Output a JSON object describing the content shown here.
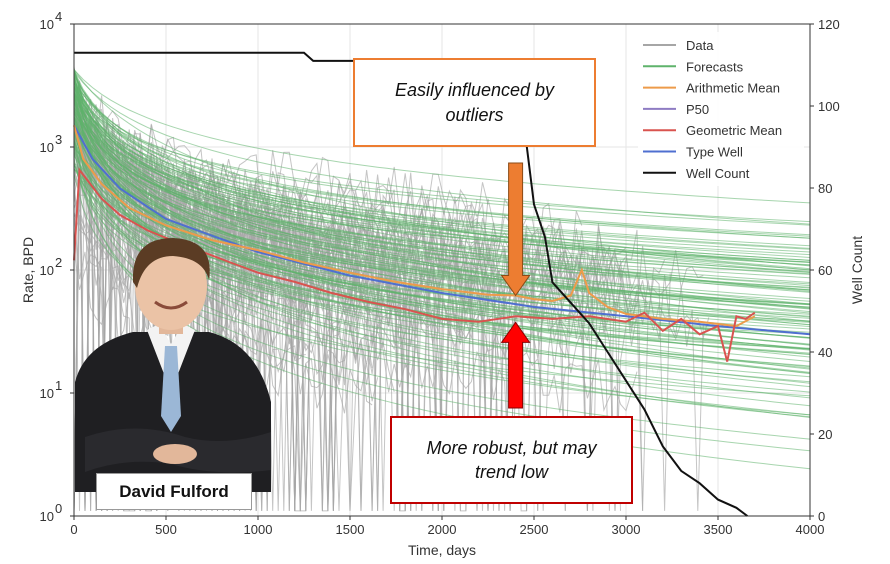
{
  "chart_data": {
    "type": "line",
    "xlabel": "Time, days",
    "ylabel": "Rate, BPD",
    "y2label": "Well Count",
    "xlim": [
      0,
      4000
    ],
    "ylim": [
      1,
      10000
    ],
    "yscale": "log",
    "y2lim": [
      0,
      120
    ],
    "x_ticks": [
      "0",
      "500",
      "1000",
      "1500",
      "2000",
      "2500",
      "3000",
      "3500",
      "4000"
    ],
    "y_ticks_left": [
      {
        "base": "10",
        "exp": "0"
      },
      {
        "base": "10",
        "exp": "1"
      },
      {
        "base": "10",
        "exp": "2"
      },
      {
        "base": "10",
        "exp": "3"
      },
      {
        "base": "10",
        "exp": "4"
      }
    ],
    "y_ticks_right": [
      "0",
      "20",
      "40",
      "60",
      "80",
      "100",
      "120"
    ],
    "legend_position": "top-right",
    "grid": true,
    "legend": [
      {
        "name": "Data",
        "color": "#A6A6A6"
      },
      {
        "name": "Forecasts",
        "color": "#5FB36B"
      },
      {
        "name": "Arithmetic Mean",
        "color": "#ED9B4A"
      },
      {
        "name": "P50",
        "color": "#8E7CC3"
      },
      {
        "name": "Geometric Mean",
        "color": "#D9534F"
      },
      {
        "name": "Type Well",
        "color": "#4F6FD0"
      },
      {
        "name": "Well Count",
        "color": "#111111"
      }
    ],
    "series": [
      {
        "name": "Type Well",
        "axis": "left",
        "x": [
          0,
          100,
          250,
          500,
          750,
          1000,
          1500,
          2000,
          2500,
          3000,
          3500,
          4000
        ],
        "y": [
          1500,
          800,
          460,
          260,
          190,
          140,
          90,
          65,
          50,
          42,
          35,
          30
        ]
      },
      {
        "name": "Arithmetic Mean",
        "axis": "left",
        "x": [
          0,
          50,
          150,
          300,
          500,
          750,
          1000,
          1250,
          1500,
          1750,
          2000,
          2250,
          2400,
          2500,
          2600,
          2700,
          2760,
          2800,
          2900,
          3000,
          3200,
          3400,
          3600,
          3700
        ],
        "y": [
          1500,
          800,
          500,
          320,
          230,
          175,
          145,
          115,
          95,
          80,
          70,
          63,
          62,
          58,
          56,
          62,
          100,
          65,
          50,
          44,
          40,
          38,
          35,
          42
        ]
      },
      {
        "name": "Geometric Mean",
        "axis": "left",
        "x": [
          0,
          30,
          80,
          150,
          250,
          400,
          550,
          700,
          850,
          1000,
          1200,
          1400,
          1600,
          1800,
          2000,
          2200,
          2400,
          2600,
          2800,
          3000,
          3100,
          3200,
          3300,
          3400,
          3500,
          3550,
          3600,
          3650,
          3700
        ],
        "y": [
          120,
          650,
          520,
          380,
          280,
          210,
          170,
          140,
          115,
          95,
          80,
          65,
          55,
          48,
          40,
          38,
          42,
          40,
          42,
          38,
          45,
          32,
          40,
          30,
          35,
          18,
          42,
          40,
          45
        ]
      },
      {
        "name": "Well Count",
        "axis": "right",
        "x": [
          0,
          1250,
          1300,
          2000,
          2300,
          2450,
          2500,
          2560,
          2600,
          2700,
          2800,
          2900,
          3000,
          3100,
          3200,
          3300,
          3400,
          3500,
          3600,
          3660
        ],
        "y": [
          113,
          113,
          111,
          111,
          106,
          94,
          76,
          68,
          57,
          52,
          47,
          40,
          33,
          26,
          17,
          11,
          8,
          4,
          2,
          0
        ]
      }
    ],
    "annotations": [
      {
        "text": "Easily influenced by outliers",
        "arrow_to": [
          2400,
          62
        ],
        "arrow_color": "#ED7D31"
      },
      {
        "text": "More robust, but may trend low",
        "arrow_to": [
          2400,
          42
        ],
        "arrow_color": "#FF0000"
      }
    ]
  },
  "person_label": "David Fulford"
}
